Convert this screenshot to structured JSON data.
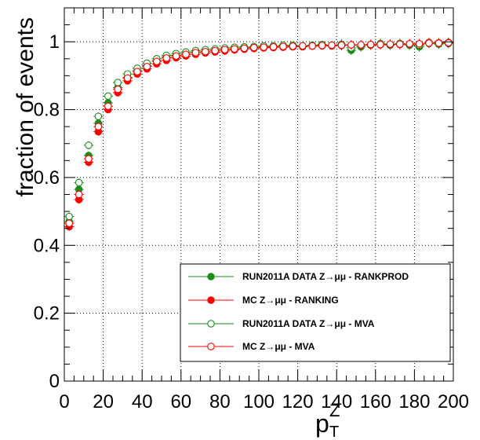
{
  "chart_data": {
    "type": "scatter",
    "title": "",
    "xlabel": "p_T^Z",
    "xlabel_main": "p",
    "xlabel_sub": "T",
    "xlabel_sup": "Z",
    "ylabel": "fraction of events",
    "xlim": [
      0,
      200
    ],
    "ylim": [
      0,
      1.1
    ],
    "xticks": [
      "0",
      "20",
      "40",
      "60",
      "80",
      "100",
      "120",
      "140",
      "160",
      "180",
      "200"
    ],
    "yticks": [
      "0",
      "0.2",
      "0.4",
      "0.6",
      "0.8",
      "1"
    ],
    "grid": true,
    "legend_position": "bottom-right",
    "x": [
      2.5,
      7.5,
      12.5,
      17.5,
      22.5,
      27.5,
      32.5,
      37.5,
      42.5,
      47.5,
      52.5,
      57.5,
      62.5,
      67.5,
      72.5,
      77.5,
      82.5,
      87.5,
      92.5,
      97.5,
      102.5,
      107.5,
      112.5,
      117.5,
      122.5,
      127.5,
      132.5,
      137.5,
      142.5,
      147.5,
      152.5,
      157.5,
      162.5,
      167.5,
      172.5,
      177.5,
      182.5,
      187.5,
      192.5,
      197.5
    ],
    "series": [
      {
        "name": "RUN2011A DATA Z→μμ - RANKPROD",
        "color": "#1a8c1a",
        "marker": "filled",
        "values": [
          0.47,
          0.565,
          0.665,
          0.76,
          0.82,
          0.865,
          0.895,
          0.915,
          0.93,
          0.945,
          0.955,
          0.96,
          0.965,
          0.97,
          0.972,
          0.975,
          0.978,
          0.98,
          0.982,
          0.983,
          0.985,
          0.985,
          0.987,
          0.988,
          0.985,
          0.988,
          0.99,
          0.988,
          0.99,
          0.975,
          0.985,
          0.99,
          0.992,
          0.99,
          0.993,
          0.99,
          0.985,
          0.995,
          0.993,
          0.995
        ]
      },
      {
        "name": "MC Z→μμ - RANKING",
        "color": "#ff0000",
        "marker": "filled",
        "values": [
          0.455,
          0.535,
          0.645,
          0.735,
          0.8,
          0.85,
          0.885,
          0.905,
          0.92,
          0.935,
          0.945,
          0.953,
          0.958,
          0.963,
          0.967,
          0.97,
          0.973,
          0.976,
          0.978,
          0.98,
          0.982,
          0.983,
          0.984,
          0.985,
          0.986,
          0.987,
          0.988,
          0.988,
          0.989,
          0.99,
          0.99,
          0.991,
          0.991,
          0.992,
          0.992,
          0.993,
          0.993,
          0.998,
          0.997,
          0.998
        ]
      },
      {
        "name": "RUN2011A DATA Z→μμ - MVA",
        "color": "#1a8c1a",
        "marker": "open",
        "values": [
          0.485,
          0.585,
          0.695,
          0.78,
          0.84,
          0.88,
          0.905,
          0.922,
          0.937,
          0.95,
          0.96,
          0.965,
          0.97,
          0.974,
          0.977,
          0.979,
          0.982,
          0.984,
          0.985,
          0.986,
          0.988,
          0.988,
          0.99,
          0.99,
          0.988,
          0.99,
          0.992,
          0.99,
          0.993,
          0.982,
          0.99,
          0.992,
          0.995,
          0.993,
          0.995,
          0.993,
          0.99,
          0.997,
          0.995,
          0.997
        ]
      },
      {
        "name": "MC Z→μμ - MVA",
        "color": "#ff0000",
        "marker": "open",
        "values": [
          0.465,
          0.55,
          0.655,
          0.75,
          0.81,
          0.86,
          0.893,
          0.912,
          0.927,
          0.942,
          0.952,
          0.958,
          0.963,
          0.968,
          0.971,
          0.974,
          0.977,
          0.979,
          0.981,
          0.983,
          0.984,
          0.985,
          0.986,
          0.987,
          0.988,
          0.988,
          0.989,
          0.99,
          0.99,
          0.991,
          0.991,
          0.992,
          0.992,
          0.993,
          0.993,
          0.994,
          0.994,
          0.996,
          0.996,
          0.997
        ]
      }
    ]
  }
}
